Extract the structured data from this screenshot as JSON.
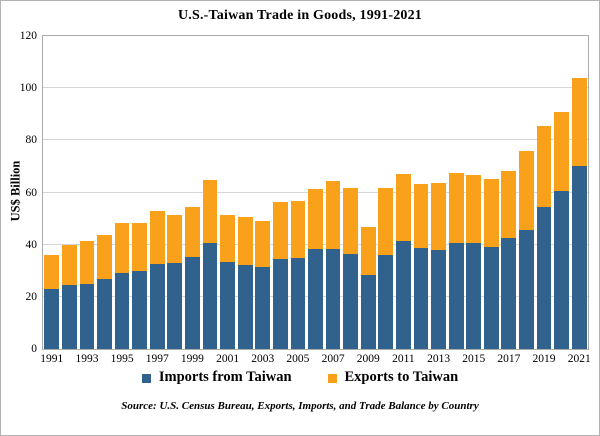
{
  "source_note": "Source: U.S. Census Bureau, Exports, Imports, and Trade Balance by Country",
  "y_axis": {
    "label": "US$ Billion",
    "ticks": [
      0,
      20,
      40,
      60,
      80,
      100,
      120
    ]
  },
  "x_axis": {
    "ticks": [
      "1991",
      "1993",
      "1995",
      "1997",
      "1999",
      "2001",
      "2003",
      "2005",
      "2007",
      "2009",
      "2011",
      "2013",
      "2015",
      "2017",
      "2019",
      "2021"
    ]
  },
  "colors": {
    "imports_blue": "#30628D",
    "exports_orange": "#F9A11A",
    "gridline": "#D6D6D6",
    "plot_border": "#ABABAB",
    "text": "#000000"
  },
  "chart_data": {
    "type": "bar",
    "stacked": true,
    "title": "U.S.-Taiwan Trade in Goods, 1991-2021",
    "ylabel": "US$ Billion",
    "ylim": [
      0,
      120
    ],
    "grid": true,
    "legend_position": "bottom",
    "categories": [
      1991,
      1992,
      1993,
      1994,
      1995,
      1996,
      1997,
      1998,
      1999,
      2000,
      2001,
      2002,
      2003,
      2004,
      2005,
      2006,
      2007,
      2008,
      2009,
      2010,
      2011,
      2012,
      2013,
      2014,
      2015,
      2016,
      2017,
      2018,
      2019,
      2020,
      2021
    ],
    "series": [
      {
        "name": "Imports from Taiwan",
        "color": "#30628D",
        "values": [
          23.0,
          24.6,
          25.1,
          26.7,
          29.0,
          29.9,
          32.6,
          33.1,
          35.2,
          40.5,
          33.4,
          32.2,
          31.6,
          34.6,
          34.8,
          38.2,
          38.3,
          36.3,
          28.4,
          35.9,
          41.3,
          38.9,
          37.9,
          40.6,
          40.7,
          39.3,
          42.5,
          45.8,
          54.3,
          60.4,
          70.0
        ]
      },
      {
        "name": "Exports to Taiwan",
        "color": "#F9A11A",
        "values": [
          13.2,
          15.3,
          16.3,
          17.1,
          19.3,
          18.4,
          20.4,
          18.2,
          19.1,
          24.4,
          18.1,
          18.4,
          17.4,
          21.7,
          22.0,
          23.0,
          26.3,
          25.3,
          18.5,
          26.0,
          25.9,
          24.4,
          25.7,
          26.7,
          25.9,
          26.0,
          25.8,
          30.2,
          31.3,
          30.5,
          34.0
        ]
      }
    ]
  }
}
